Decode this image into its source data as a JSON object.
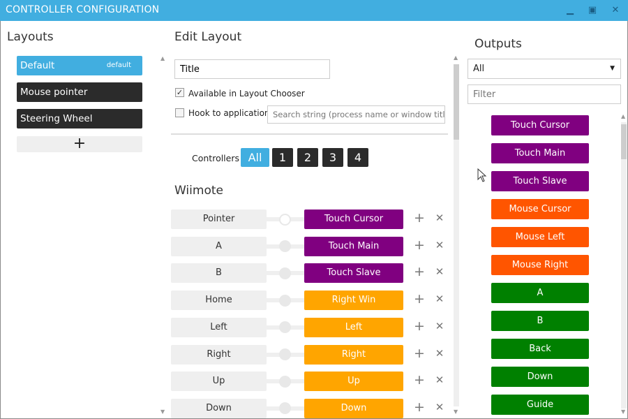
{
  "window": {
    "title": "CONTROLLER CONFIGURATION",
    "minimize": "▁",
    "maximize": "▣",
    "close": "✕"
  },
  "layouts": {
    "heading": "Layouts",
    "items": [
      {
        "label": "Default",
        "badge": "default",
        "selected": true
      },
      {
        "label": "Mouse pointer"
      },
      {
        "label": "Steering Wheel"
      }
    ],
    "add_label": "+"
  },
  "edit": {
    "heading": "Edit Layout",
    "title_value": "Title",
    "available_label": "Available in Layout Chooser",
    "available_checked": true,
    "hook_label": "Hook to application",
    "hook_checked": false,
    "search_placeholder": "Search string (process name or window title, e.g.",
    "controllers_label": "Controllers",
    "controller_tabs": [
      "All",
      "1",
      "2",
      "3",
      "4"
    ],
    "active_tab": "All",
    "section": "Wiimote",
    "mappings": [
      {
        "input": "Pointer",
        "output": "Touch Cursor",
        "color": "#800080"
      },
      {
        "input": "A",
        "output": "Touch Main",
        "color": "#800080"
      },
      {
        "input": "B",
        "output": "Touch Slave",
        "color": "#800080"
      },
      {
        "input": "Home",
        "output": "Right Win",
        "color": "#ffa500"
      },
      {
        "input": "Left",
        "output": "Left",
        "color": "#ffa500"
      },
      {
        "input": "Right",
        "output": "Right",
        "color": "#ffa500"
      },
      {
        "input": "Up",
        "output": "Up",
        "color": "#ffa500"
      },
      {
        "input": "Down",
        "output": "Down",
        "color": "#ffa500"
      }
    ],
    "add_icon": "+",
    "remove_icon": "✕"
  },
  "outputs": {
    "heading": "Outputs",
    "filter_select": "All",
    "filter_placeholder": "Filter",
    "items": [
      {
        "label": "Touch Cursor",
        "color": "#800080"
      },
      {
        "label": "Touch Main",
        "color": "#800080"
      },
      {
        "label": "Touch Slave",
        "color": "#800080"
      },
      {
        "label": "Mouse Cursor",
        "color": "#ff5500"
      },
      {
        "label": "Mouse Left",
        "color": "#ff5500"
      },
      {
        "label": "Mouse Right",
        "color": "#ff5500"
      },
      {
        "label": "A",
        "color": "#008000"
      },
      {
        "label": "B",
        "color": "#008000"
      },
      {
        "label": "Back",
        "color": "#008000"
      },
      {
        "label": "Down",
        "color": "#008000"
      },
      {
        "label": "Guide",
        "color": "#008000"
      }
    ]
  },
  "colors": {
    "accent": "#41aee0",
    "dark": "#2b2b2b"
  }
}
